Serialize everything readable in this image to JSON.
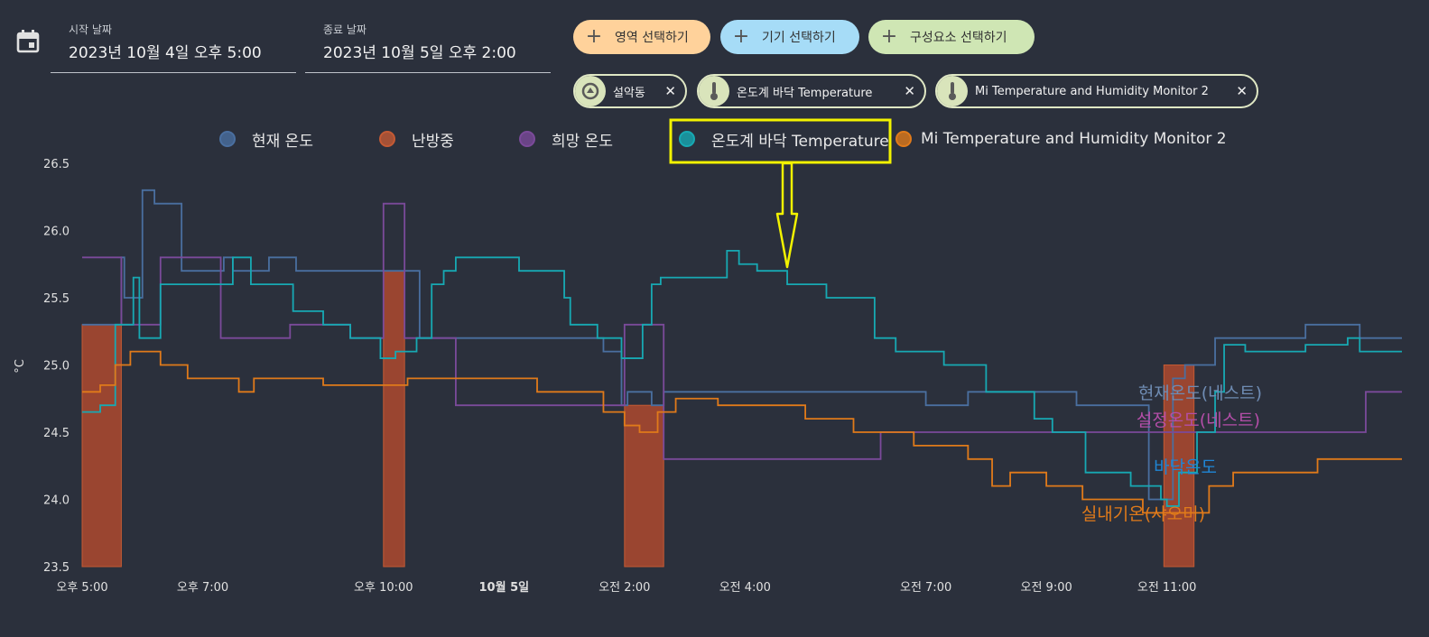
{
  "date_range": {
    "start_label": "시작 날짜",
    "start_value": "2023년 10월 4일 오후 5:00",
    "end_label": "종료 날짜",
    "end_value": "2023년 10월 5일 오후 2:00"
  },
  "target_buttons": [
    {
      "label": "영역 선택하기",
      "color": "#ffd29b"
    },
    {
      "label": "기기 선택하기",
      "color": "#a6dcf7"
    },
    {
      "label": "구성요소 선택하기",
      "color": "#cfe6b4"
    }
  ],
  "chips": [
    {
      "label": "설악동",
      "icon": "area-icon"
    },
    {
      "label": "온도계 바닥 Temperature",
      "icon": "thermometer-icon"
    },
    {
      "label": "Mi Temperature and Humidity Monitor 2",
      "icon": "thermometer-icon"
    }
  ],
  "legend": [
    {
      "label": "현재 온도",
      "color": "#4a6fa0"
    },
    {
      "label": "난방중",
      "color": "#c45a34"
    },
    {
      "label": "희망 온도",
      "color": "#7b4a9a"
    },
    {
      "label": "온도계 바닥 Temperature",
      "color": "#17a9b3"
    },
    {
      "label": "Mi Temperature and Humidity Monitor 2",
      "color": "#e07a1a"
    }
  ],
  "chart_data": {
    "type": "line",
    "ylabel": "°C",
    "ylim": [
      23.5,
      26.5
    ],
    "yticks": [
      "26.5",
      "26.0",
      "25.5",
      "25.0",
      "24.5",
      "24.0",
      "23.5"
    ],
    "xlim": [
      17,
      38.9
    ],
    "xticks": [
      {
        "label": "오후 5:00",
        "t": 17,
        "bold": false
      },
      {
        "label": "오후 7:00",
        "t": 19,
        "bold": false
      },
      {
        "label": "오후 10:00",
        "t": 22,
        "bold": false
      },
      {
        "label": "10월 5일",
        "t": 24,
        "bold": true
      },
      {
        "label": "오전 2:00",
        "t": 26,
        "bold": false
      },
      {
        "label": "오전 4:00",
        "t": 28,
        "bold": false
      },
      {
        "label": "오전 7:00",
        "t": 31,
        "bold": false
      },
      {
        "label": "오전 9:00",
        "t": 33,
        "bold": false
      },
      {
        "label": "오전 11:00",
        "t": 35,
        "bold": false
      }
    ],
    "heating": [
      [
        17.0,
        17.65
      ],
      [
        22.0,
        22.35
      ],
      [
        26.0,
        26.65
      ],
      [
        34.95,
        35.45
      ]
    ],
    "series": [
      {
        "name": "현재 온도",
        "color": "#4a6fa0",
        "points": [
          [
            17.0,
            25.3
          ],
          [
            17.25,
            25.3
          ],
          [
            17.65,
            25.8
          ],
          [
            17.7,
            25.5
          ],
          [
            18.0,
            25.5
          ],
          [
            18.0,
            26.3
          ],
          [
            18.2,
            26.3
          ],
          [
            18.2,
            26.2
          ],
          [
            18.65,
            26.2
          ],
          [
            18.65,
            25.7
          ],
          [
            19.35,
            25.7
          ],
          [
            19.35,
            25.8
          ],
          [
            19.5,
            25.7
          ],
          [
            20.1,
            25.7
          ],
          [
            20.1,
            25.8
          ],
          [
            20.55,
            25.8
          ],
          [
            20.55,
            25.7
          ],
          [
            22.6,
            25.7
          ],
          [
            22.6,
            25.2
          ],
          [
            25.65,
            25.2
          ],
          [
            25.65,
            25.1
          ],
          [
            25.95,
            25.1
          ],
          [
            25.95,
            24.7
          ],
          [
            26.05,
            24.8
          ],
          [
            26.45,
            24.7
          ],
          [
            26.65,
            24.8
          ],
          [
            30.4,
            24.8
          ],
          [
            31.0,
            24.7
          ],
          [
            31.7,
            24.8
          ],
          [
            33.0,
            24.8
          ],
          [
            33.5,
            24.7
          ],
          [
            34.7,
            24.7
          ],
          [
            34.7,
            24.0
          ],
          [
            35.1,
            24.0
          ],
          [
            35.1,
            24.9
          ],
          [
            35.3,
            25.0
          ],
          [
            35.8,
            25.2
          ],
          [
            36.5,
            25.2
          ],
          [
            37.3,
            25.2
          ],
          [
            37.3,
            25.3
          ],
          [
            38.2,
            25.3
          ],
          [
            38.2,
            25.2
          ],
          [
            38.9,
            25.2
          ]
        ]
      },
      {
        "name": "희망 온도",
        "color": "#7b4a9a",
        "points": [
          [
            17.0,
            25.8
          ],
          [
            17.65,
            25.8
          ],
          [
            17.65,
            25.3
          ],
          [
            18.3,
            25.3
          ],
          [
            18.3,
            25.8
          ],
          [
            19.3,
            25.8
          ],
          [
            19.3,
            25.2
          ],
          [
            20.45,
            25.2
          ],
          [
            20.45,
            25.3
          ],
          [
            21.45,
            25.3
          ],
          [
            21.45,
            25.2
          ],
          [
            22.0,
            25.2
          ],
          [
            22.0,
            26.2
          ],
          [
            22.35,
            26.2
          ],
          [
            22.35,
            25.2
          ],
          [
            23.2,
            25.2
          ],
          [
            23.2,
            24.7
          ],
          [
            26.0,
            24.7
          ],
          [
            26.0,
            25.3
          ],
          [
            26.65,
            25.3
          ],
          [
            26.65,
            24.3
          ],
          [
            30.25,
            24.3
          ],
          [
            30.25,
            24.5
          ],
          [
            38.3,
            24.5
          ],
          [
            38.3,
            24.8
          ],
          [
            38.9,
            24.8
          ]
        ]
      },
      {
        "name": "온도계 바닥 Temperature",
        "color": "#17a9b3",
        "points": [
          [
            17.0,
            24.65
          ],
          [
            17.3,
            24.7
          ],
          [
            17.55,
            25.3
          ],
          [
            17.8,
            25.3
          ],
          [
            17.85,
            25.65
          ],
          [
            17.95,
            25.2
          ],
          [
            18.3,
            25.2
          ],
          [
            18.3,
            25.6
          ],
          [
            19.5,
            25.8
          ],
          [
            19.8,
            25.6
          ],
          [
            20.5,
            25.4
          ],
          [
            21.0,
            25.3
          ],
          [
            21.45,
            25.2
          ],
          [
            21.95,
            25.05
          ],
          [
            22.2,
            25.1
          ],
          [
            22.55,
            25.2
          ],
          [
            22.8,
            25.6
          ],
          [
            23.0,
            25.7
          ],
          [
            23.2,
            25.8
          ],
          [
            23.8,
            25.8
          ],
          [
            24.25,
            25.7
          ],
          [
            25.0,
            25.5
          ],
          [
            25.1,
            25.3
          ],
          [
            25.55,
            25.2
          ],
          [
            25.95,
            25.05
          ],
          [
            26.3,
            25.3
          ],
          [
            26.45,
            25.6
          ],
          [
            26.6,
            25.65
          ],
          [
            27.45,
            25.65
          ],
          [
            27.7,
            25.85
          ],
          [
            27.9,
            25.75
          ],
          [
            28.2,
            25.7
          ],
          [
            28.7,
            25.6
          ],
          [
            29.35,
            25.5
          ],
          [
            30.15,
            25.2
          ],
          [
            30.5,
            25.1
          ],
          [
            31.3,
            25.0
          ],
          [
            32.0,
            24.8
          ],
          [
            32.8,
            24.6
          ],
          [
            33.1,
            24.5
          ],
          [
            33.65,
            24.2
          ],
          [
            34.4,
            24.1
          ],
          [
            34.9,
            24.0
          ],
          [
            35.0,
            23.95
          ],
          [
            35.2,
            24.2
          ],
          [
            35.5,
            24.5
          ],
          [
            35.8,
            24.8
          ],
          [
            35.95,
            25.15
          ],
          [
            36.3,
            25.1
          ],
          [
            37.3,
            25.15
          ],
          [
            37.7,
            25.15
          ],
          [
            38.0,
            25.2
          ],
          [
            38.2,
            25.2
          ],
          [
            38.2,
            25.1
          ],
          [
            38.9,
            25.1
          ]
        ]
      },
      {
        "name": "Mi Temperature and Humidity Monitor 2",
        "color": "#e07a1a",
        "points": [
          [
            17.0,
            24.8
          ],
          [
            17.3,
            24.85
          ],
          [
            17.55,
            25.0
          ],
          [
            17.8,
            25.1
          ],
          [
            18.3,
            25.1
          ],
          [
            18.3,
            25.0
          ],
          [
            18.75,
            25.0
          ],
          [
            18.75,
            24.9
          ],
          [
            19.6,
            24.9
          ],
          [
            19.6,
            24.8
          ],
          [
            19.85,
            24.8
          ],
          [
            19.85,
            24.9
          ],
          [
            21.0,
            24.9
          ],
          [
            21.0,
            24.85
          ],
          [
            22.4,
            24.85
          ],
          [
            22.4,
            24.9
          ],
          [
            24.55,
            24.9
          ],
          [
            24.55,
            24.8
          ],
          [
            25.65,
            24.8
          ],
          [
            25.65,
            24.65
          ],
          [
            26.0,
            24.55
          ],
          [
            26.25,
            24.5
          ],
          [
            26.55,
            24.65
          ],
          [
            26.85,
            24.75
          ],
          [
            27.55,
            24.75
          ],
          [
            27.55,
            24.7
          ],
          [
            29.0,
            24.7
          ],
          [
            29.0,
            24.6
          ],
          [
            29.8,
            24.6
          ],
          [
            29.8,
            24.5
          ],
          [
            30.3,
            24.5
          ],
          [
            30.8,
            24.4
          ],
          [
            31.7,
            24.3
          ],
          [
            32.1,
            24.1
          ],
          [
            32.4,
            24.1
          ],
          [
            32.4,
            24.2
          ],
          [
            33.0,
            24.2
          ],
          [
            33.0,
            24.1
          ],
          [
            33.6,
            24.1
          ],
          [
            33.6,
            24.0
          ],
          [
            34.6,
            24.0
          ],
          [
            34.6,
            23.9
          ],
          [
            35.45,
            23.9
          ],
          [
            35.7,
            24.1
          ],
          [
            36.1,
            24.2
          ],
          [
            37.5,
            24.2
          ],
          [
            37.5,
            24.3
          ],
          [
            38.9,
            24.3
          ]
        ]
      }
    ],
    "annotations": [
      {
        "text": "현재온도(네스트)",
        "color": "#6f8cb3"
      },
      {
        "text": "설정온도(네스트)",
        "color": "#b44ea8"
      },
      {
        "text": "바닥온도",
        "color": "#1f86d6"
      },
      {
        "text": "실내기온(샤오미)",
        "color": "#e07a1a"
      }
    ]
  }
}
